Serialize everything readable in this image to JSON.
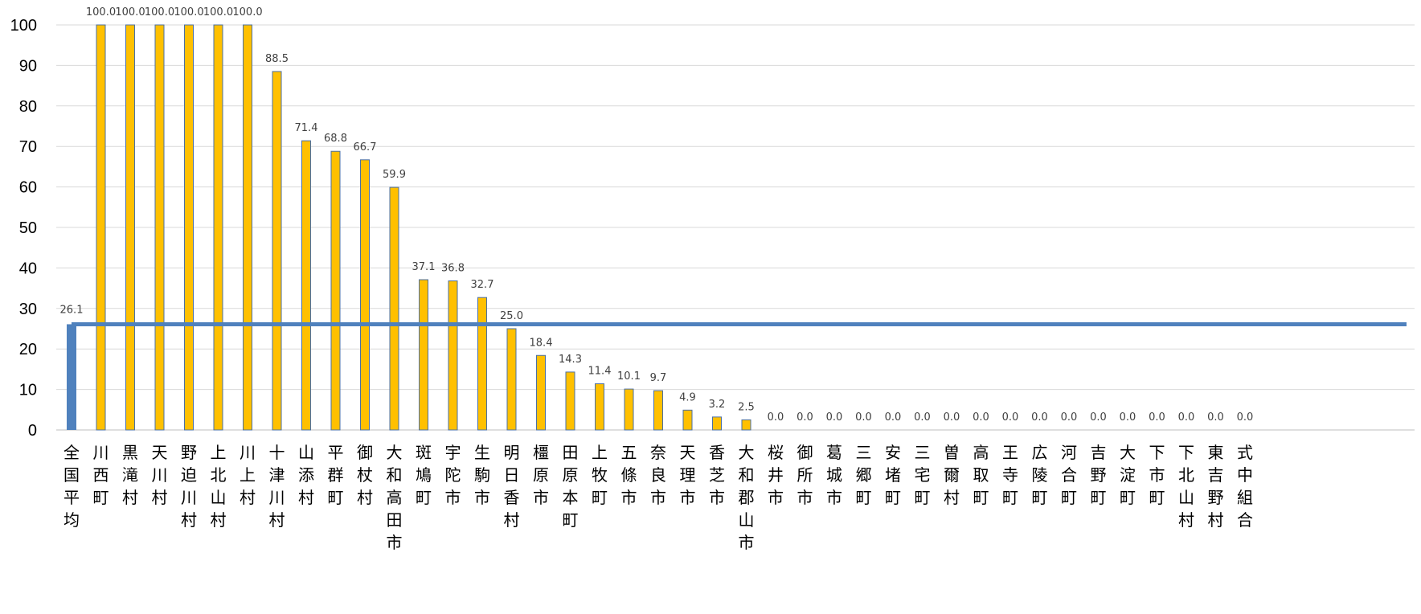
{
  "chart_data": {
    "type": "bar",
    "title": "",
    "xlabel": "",
    "ylabel": "",
    "ylim": [
      0,
      100
    ],
    "yticks": [
      0,
      10,
      20,
      30,
      40,
      50,
      60,
      70,
      80,
      90,
      100
    ],
    "grid": true,
    "legend": "none",
    "bar_color": "#FFC000",
    "average_color": "#4F81BD",
    "average": {
      "label": "全国平均",
      "value": 26.1,
      "value_label": "26.1"
    },
    "categories": [
      "川西町",
      "黒滝村",
      "天川村",
      "野迫川村",
      "上北山村",
      "川上村",
      "十津川村",
      "山添村",
      "平群町",
      "御杖村",
      "大和高田市",
      "斑鳩町",
      "宇陀市",
      "生駒市",
      "明日香村",
      "橿原市",
      "田原本町",
      "上牧町",
      "五條市",
      "奈良市",
      "天理市",
      "香芝市",
      "大和郡山市",
      "桜井市",
      "御所市",
      "葛城市",
      "三郷町",
      "安堵町",
      "三宅町",
      "曽爾村",
      "高取町",
      "王寺町",
      "広陵町",
      "河合町",
      "吉野町",
      "大淀町",
      "下市町",
      "下北山村",
      "東吉野村",
      "式中組合"
    ],
    "values": [
      100.0,
      100.0,
      100.0,
      100.0,
      100.0,
      100.0,
      88.5,
      71.4,
      68.8,
      66.7,
      59.9,
      37.1,
      36.8,
      32.7,
      25.0,
      18.4,
      14.3,
      11.4,
      10.1,
      9.7,
      4.9,
      3.2,
      2.5,
      0.0,
      0.0,
      0.0,
      0.0,
      0.0,
      0.0,
      0.0,
      0.0,
      0.0,
      0.0,
      0.0,
      0.0,
      0.0,
      0.0,
      0.0,
      0.0,
      0.0
    ],
    "value_labels": [
      "100.0",
      "100.0",
      "100.0",
      "100.0",
      "100.0",
      "100.0",
      "88.5",
      "71.4",
      "68.8",
      "66.7",
      "59.9",
      "37.1",
      "36.8",
      "32.7",
      "25.0",
      "18.4",
      "14.3",
      "11.4",
      "10.1",
      "9.7",
      "4.9",
      "3.2",
      "2.5",
      "0.0",
      "0.0",
      "0.0",
      "0.0",
      "0.0",
      "0.0",
      "0.0",
      "0.0",
      "0.0",
      "0.0",
      "0.0",
      "0.0",
      "0.0",
      "0.0",
      "0.0",
      "0.0",
      "0.0"
    ]
  }
}
